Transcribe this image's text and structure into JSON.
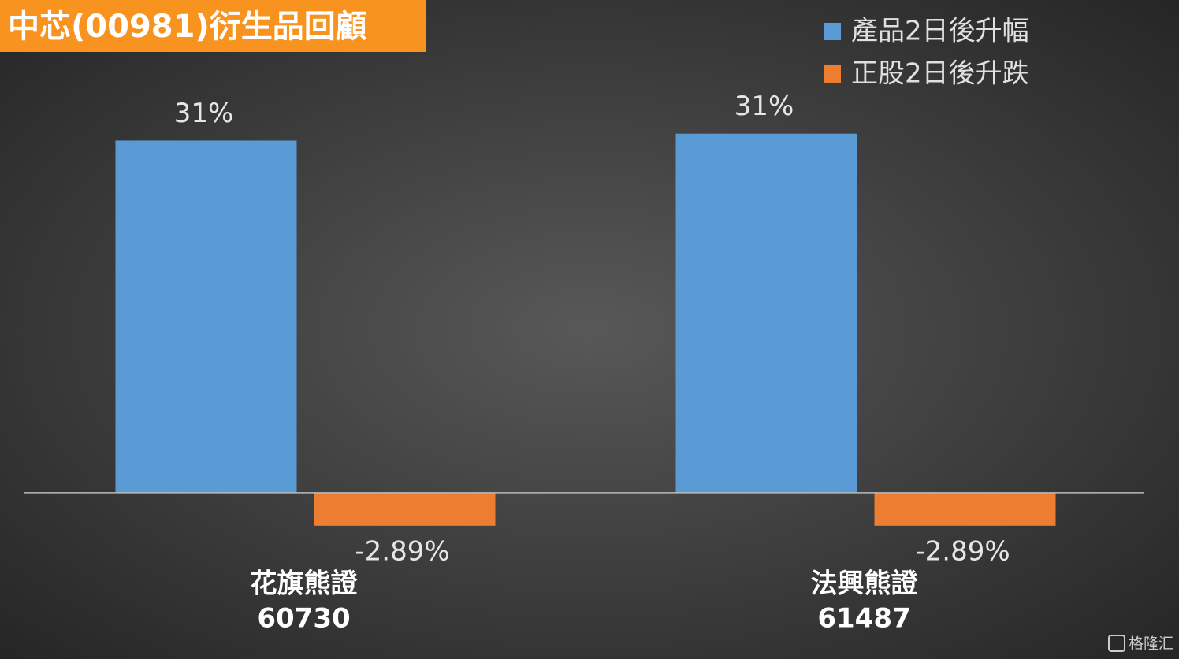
{
  "chart_data": {
    "type": "bar",
    "title": "中芯(00981)衍生品回顧",
    "categories": [
      "花旗熊證",
      "法興熊證"
    ],
    "category_codes": [
      "60730",
      "61487"
    ],
    "series": [
      {
        "name": "產品2日後升幅",
        "color": "#5b9bd5",
        "values": [
          30.8,
          31.4
        ],
        "value_labels": [
          "31%",
          "31%"
        ]
      },
      {
        "name": "正股2日後升跌",
        "color": "#ed7d31",
        "values": [
          -2.89,
          -2.89
        ],
        "value_labels": [
          "-2.89%",
          "-2.89%"
        ]
      }
    ],
    "ylim": [
      -6,
      33
    ],
    "legend": "top-right",
    "watermark": "格隆汇"
  }
}
